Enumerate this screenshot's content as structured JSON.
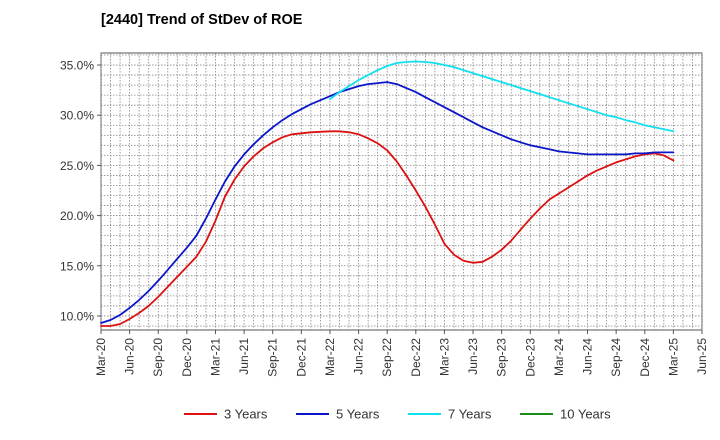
{
  "chart_data": {
    "type": "line",
    "title": "[2440]  Trend of StDev of ROE",
    "xlabel": "",
    "ylabel": "",
    "x_ticks": [
      "Mar-20",
      "Jun-20",
      "Sep-20",
      "Dec-20",
      "Mar-21",
      "Jun-21",
      "Sep-21",
      "Dec-21",
      "Mar-22",
      "Jun-22",
      "Sep-22",
      "Dec-22",
      "Mar-23",
      "Jun-23",
      "Sep-23",
      "Dec-23",
      "Mar-24",
      "Jun-24",
      "Sep-24",
      "Dec-24",
      "Mar-25",
      "Jun-25"
    ],
    "y_ticks": [
      "10.0%",
      "15.0%",
      "20.0%",
      "25.0%",
      "30.0%",
      "35.0%"
    ],
    "y_tick_values": [
      10,
      15,
      20,
      25,
      30,
      35
    ],
    "ylim": [
      8.6,
      36.2
    ],
    "grid": true,
    "legend_position": "bottom",
    "series": [
      {
        "name": "3 Years",
        "color": "#dd1111",
        "points": [
          [
            "Mar-20",
            9.0
          ],
          [
            "Apr-20",
            9.0
          ],
          [
            "May-20",
            9.2
          ],
          [
            "Jun-20",
            9.7
          ],
          [
            "Jul-20",
            10.3
          ],
          [
            "Aug-20",
            11.0
          ],
          [
            "Sep-20",
            11.9
          ],
          [
            "Oct-20",
            12.9
          ],
          [
            "Nov-20",
            13.9
          ],
          [
            "Dec-20",
            14.9
          ],
          [
            "Jan-21",
            15.9
          ],
          [
            "Feb-21",
            17.4
          ],
          [
            "Mar-21",
            19.5
          ],
          [
            "Apr-21",
            21.9
          ],
          [
            "May-21",
            23.6
          ],
          [
            "Jun-21",
            24.9
          ],
          [
            "Jul-21",
            25.9
          ],
          [
            "Aug-21",
            26.7
          ],
          [
            "Sep-21",
            27.3
          ],
          [
            "Oct-21",
            27.8
          ],
          [
            "Nov-21",
            28.1
          ],
          [
            "Dec-21",
            28.2
          ],
          [
            "Jan-22",
            28.3
          ],
          [
            "Feb-22",
            28.35
          ],
          [
            "Mar-22",
            28.4
          ],
          [
            "Apr-22",
            28.4
          ],
          [
            "May-22",
            28.3
          ],
          [
            "Jun-22",
            28.1
          ],
          [
            "Jul-22",
            27.7
          ],
          [
            "Aug-22",
            27.2
          ],
          [
            "Sep-22",
            26.5
          ],
          [
            "Oct-22",
            25.4
          ],
          [
            "Nov-22",
            24.0
          ],
          [
            "Dec-22",
            22.5
          ],
          [
            "Jan-23",
            20.9
          ],
          [
            "Feb-23",
            19.1
          ],
          [
            "Mar-23",
            17.2
          ],
          [
            "Apr-23",
            16.1
          ],
          [
            "May-23",
            15.5
          ],
          [
            "Jun-23",
            15.3
          ],
          [
            "Jul-23",
            15.4
          ],
          [
            "Aug-23",
            15.9
          ],
          [
            "Sep-23",
            16.6
          ],
          [
            "Oct-23",
            17.5
          ],
          [
            "Nov-23",
            18.6
          ],
          [
            "Dec-23",
            19.7
          ],
          [
            "Jan-24",
            20.7
          ],
          [
            "Feb-24",
            21.6
          ],
          [
            "Mar-24",
            22.2
          ],
          [
            "Apr-24",
            22.8
          ],
          [
            "May-24",
            23.4
          ],
          [
            "Jun-24",
            24.0
          ],
          [
            "Jul-24",
            24.5
          ],
          [
            "Aug-24",
            24.9
          ],
          [
            "Sep-24",
            25.3
          ],
          [
            "Oct-24",
            25.6
          ],
          [
            "Nov-24",
            25.9
          ],
          [
            "Dec-24",
            26.1
          ],
          [
            "Jan-25",
            26.2
          ],
          [
            "Feb-25",
            26.0
          ],
          [
            "Mar-25",
            25.5
          ]
        ]
      },
      {
        "name": "5 Years",
        "color": "#0a16c8",
        "points": [
          [
            "Mar-20",
            9.3
          ],
          [
            "Apr-20",
            9.6
          ],
          [
            "May-20",
            10.1
          ],
          [
            "Jun-20",
            10.8
          ],
          [
            "Jul-20",
            11.6
          ],
          [
            "Aug-20",
            12.5
          ],
          [
            "Sep-20",
            13.5
          ],
          [
            "Oct-20",
            14.6
          ],
          [
            "Nov-20",
            15.7
          ],
          [
            "Dec-20",
            16.8
          ],
          [
            "Jan-21",
            18.0
          ],
          [
            "Feb-21",
            19.7
          ],
          [
            "Mar-21",
            21.6
          ],
          [
            "Apr-21",
            23.4
          ],
          [
            "May-21",
            24.9
          ],
          [
            "Jun-21",
            26.1
          ],
          [
            "Jul-21",
            27.1
          ],
          [
            "Aug-21",
            28.0
          ],
          [
            "Sep-21",
            28.8
          ],
          [
            "Oct-21",
            29.5
          ],
          [
            "Nov-21",
            30.1
          ],
          [
            "Dec-21",
            30.6
          ],
          [
            "Jan-22",
            31.1
          ],
          [
            "Feb-22",
            31.5
          ],
          [
            "Mar-22",
            31.9
          ],
          [
            "Apr-22",
            32.3
          ],
          [
            "May-22",
            32.6
          ],
          [
            "Jun-22",
            32.9
          ],
          [
            "Jul-22",
            33.1
          ],
          [
            "Aug-22",
            33.2
          ],
          [
            "Sep-22",
            33.3
          ],
          [
            "Oct-22",
            33.1
          ],
          [
            "Nov-22",
            32.7
          ],
          [
            "Dec-22",
            32.3
          ],
          [
            "Jan-23",
            31.8
          ],
          [
            "Feb-23",
            31.3
          ],
          [
            "Mar-23",
            30.8
          ],
          [
            "Apr-23",
            30.3
          ],
          [
            "May-23",
            29.8
          ],
          [
            "Jun-23",
            29.3
          ],
          [
            "Jul-23",
            28.8
          ],
          [
            "Aug-23",
            28.4
          ],
          [
            "Sep-23",
            28.0
          ],
          [
            "Oct-23",
            27.6
          ],
          [
            "Nov-23",
            27.3
          ],
          [
            "Dec-23",
            27.0
          ],
          [
            "Jan-24",
            26.8
          ],
          [
            "Feb-24",
            26.6
          ],
          [
            "Mar-24",
            26.4
          ],
          [
            "Apr-24",
            26.3
          ],
          [
            "May-24",
            26.2
          ],
          [
            "Jun-24",
            26.1
          ],
          [
            "Jul-24",
            26.1
          ],
          [
            "Aug-24",
            26.1
          ],
          [
            "Sep-24",
            26.1
          ],
          [
            "Oct-24",
            26.1
          ],
          [
            "Nov-24",
            26.2
          ],
          [
            "Dec-24",
            26.2
          ],
          [
            "Jan-25",
            26.3
          ],
          [
            "Feb-25",
            26.3
          ],
          [
            "Mar-25",
            26.3
          ]
        ]
      },
      {
        "name": "7 Years",
        "color": "#11e0ee",
        "points": [
          [
            "Mar-22",
            31.6
          ],
          [
            "Apr-22",
            32.3
          ],
          [
            "May-22",
            32.9
          ],
          [
            "Jun-22",
            33.5
          ],
          [
            "Jul-22",
            34.0
          ],
          [
            "Aug-22",
            34.5
          ],
          [
            "Sep-22",
            34.9
          ],
          [
            "Oct-22",
            35.2
          ],
          [
            "Nov-22",
            35.3
          ],
          [
            "Dec-22",
            35.35
          ],
          [
            "Jan-23",
            35.3
          ],
          [
            "Feb-23",
            35.2
          ],
          [
            "Mar-23",
            35.0
          ],
          [
            "Apr-23",
            34.8
          ],
          [
            "May-23",
            34.5
          ],
          [
            "Jun-23",
            34.2
          ],
          [
            "Jul-23",
            33.9
          ],
          [
            "Aug-23",
            33.6
          ],
          [
            "Sep-23",
            33.3
          ],
          [
            "Oct-23",
            33.0
          ],
          [
            "Nov-23",
            32.7
          ],
          [
            "Dec-23",
            32.4
          ],
          [
            "Jan-24",
            32.1
          ],
          [
            "Feb-24",
            31.8
          ],
          [
            "Mar-24",
            31.5
          ],
          [
            "Apr-24",
            31.2
          ],
          [
            "May-24",
            30.9
          ],
          [
            "Jun-24",
            30.6
          ],
          [
            "Jul-24",
            30.3
          ],
          [
            "Aug-24",
            30.0
          ],
          [
            "Sep-24",
            29.8
          ],
          [
            "Oct-24",
            29.5
          ],
          [
            "Nov-24",
            29.3
          ],
          [
            "Dec-24",
            29.0
          ],
          [
            "Jan-25",
            28.8
          ],
          [
            "Feb-25",
            28.6
          ],
          [
            "Mar-25",
            28.4
          ]
        ]
      },
      {
        "name": "10 Years",
        "color": "#1a8a1a",
        "points": []
      }
    ]
  }
}
